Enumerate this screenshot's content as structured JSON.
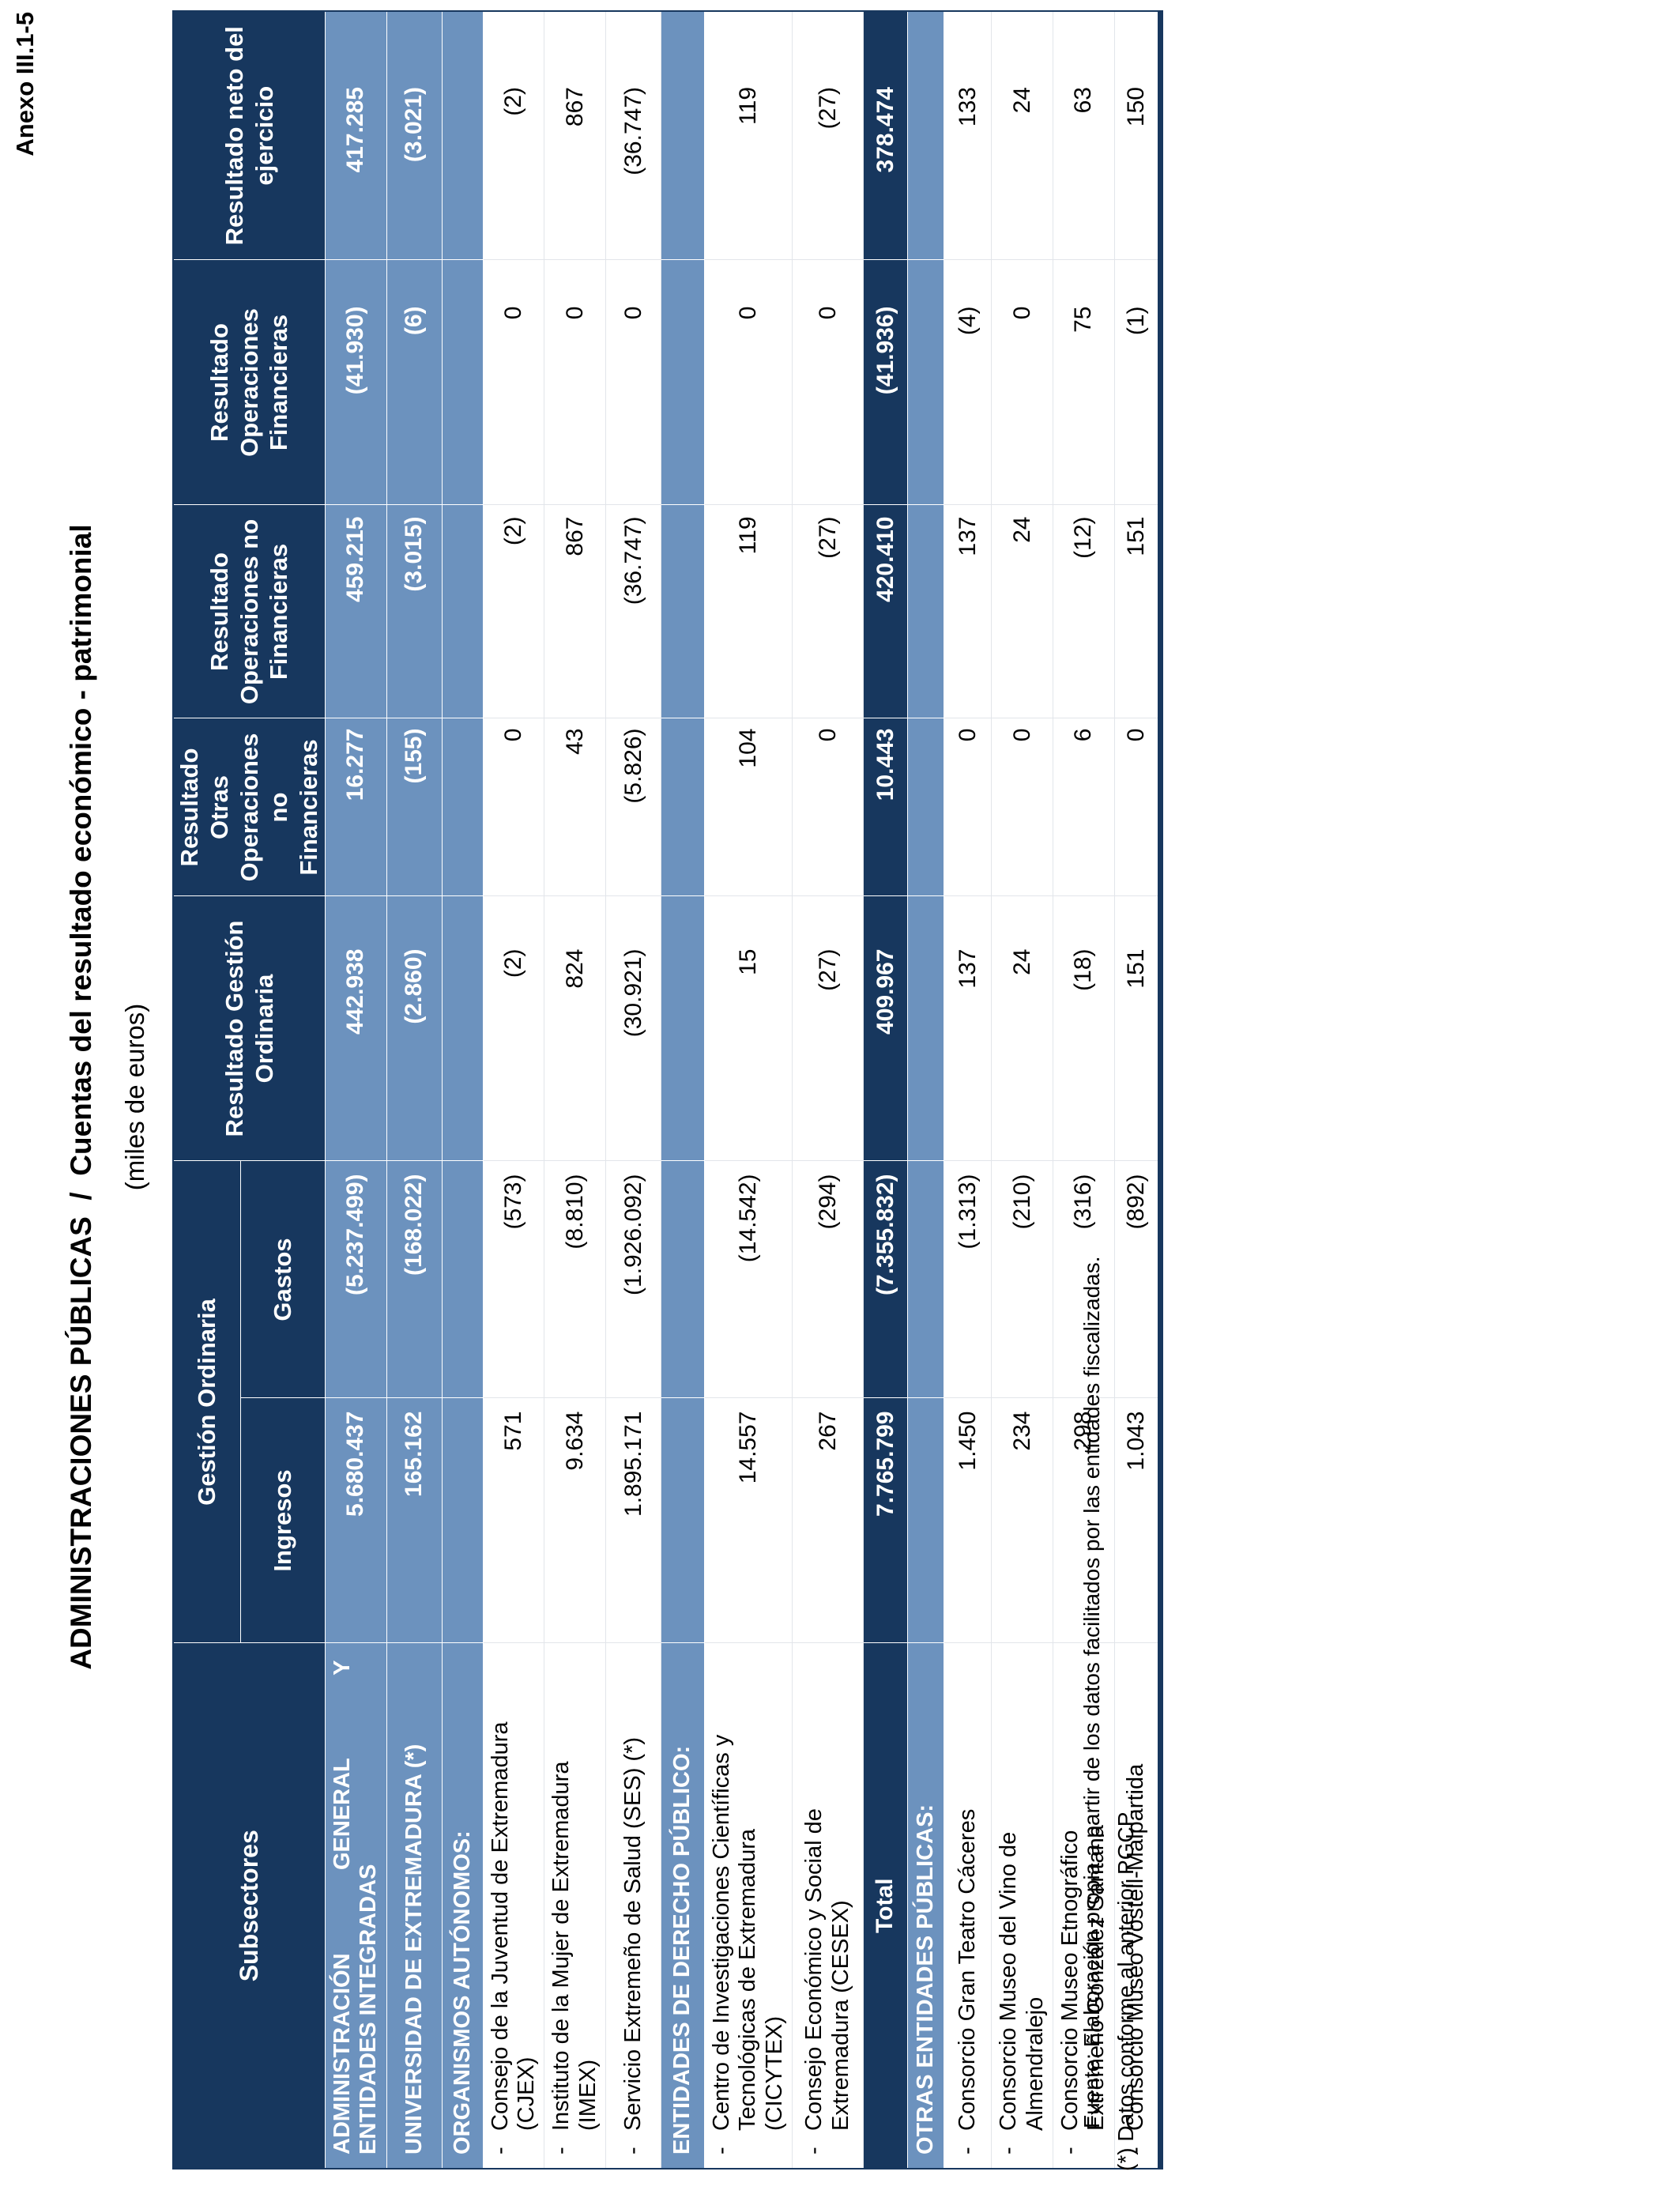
{
  "page": {
    "annex_label": "Anexo III.1-5",
    "title": "ADMINISTRACIONES PÚBLICAS  /  Cuentas del resultado económico - patrimonial",
    "subtitle": "(miles de euros)",
    "footnote_source": "Fuente: Elaboración propia a partir de los datos facilitados por las entidades fiscalizadas.",
    "footnote_note": "(*) Datos conforme al anterior PGCP."
  },
  "colors": {
    "header_navy": "#17375E",
    "section_blue": "#6C92BE",
    "white_grid": "#E2E5EA",
    "text_light": "#FFFFFF",
    "text_dark": "#000000"
  },
  "table": {
    "columns": [
      {
        "key": "label",
        "header_lines": [
          "Subsectores"
        ]
      },
      {
        "key": "ingresos",
        "group": "Gestión Ordinaria",
        "header_lines": [
          "Ingresos"
        ]
      },
      {
        "key": "gastos",
        "group": "Gestión Ordinaria",
        "header_lines": [
          "Gastos"
        ]
      },
      {
        "key": "res_gestion",
        "header_lines": [
          "Resultado Gestión",
          "Ordinaria"
        ]
      },
      {
        "key": "res_otras",
        "header_lines": [
          "Resultado Otras",
          "Operaciones no",
          "Financieras"
        ]
      },
      {
        "key": "res_op_no_fin",
        "header_lines": [
          "Resultado",
          "Operaciones no",
          "Financieras"
        ]
      },
      {
        "key": "res_op_fin",
        "header_lines": [
          "Resultado",
          "Operaciones",
          "Financieras"
        ]
      },
      {
        "key": "res_neto",
        "header_lines": [
          "Resultado neto del",
          "ejercicio"
        ]
      }
    ],
    "rows": [
      {
        "id": "admin-general",
        "type": "section",
        "justify_first": true,
        "label_lines": [
          "ADMINISTRACIÓN GENERAL Y",
          "ENTIDADES INTEGRADAS"
        ],
        "values": [
          "5.680.437",
          "(5.237.499)",
          "442.938",
          "16.277",
          "459.215",
          "(41.930)",
          "417.285"
        ]
      },
      {
        "id": "universidad",
        "type": "section",
        "label_lines": [
          "UNIVERSIDAD DE EXTREMADURA (*)"
        ],
        "values": [
          "165.162",
          "(168.022)",
          "(2.860)",
          "(155)",
          "(3.015)",
          "(6)",
          "(3.021)"
        ]
      },
      {
        "id": "organismos-autonomos",
        "type": "section",
        "label_lines": [
          "ORGANISMOS AUTÓNOMOS:"
        ],
        "values": [
          "",
          "",
          "",
          "",
          "",
          "",
          ""
        ]
      },
      {
        "id": "cjex",
        "type": "entity",
        "dash": true,
        "label_lines": [
          "Consejo de la Juventud de Extremadura",
          "(CJEX)"
        ],
        "values": [
          "571",
          "(573)",
          "(2)",
          "0",
          "(2)",
          "0",
          "(2)"
        ]
      },
      {
        "id": "imex",
        "type": "entity",
        "dash": true,
        "label_lines": [
          "Instituto de la Mujer de Extremadura",
          "(IMEX)"
        ],
        "values": [
          "9.634",
          "(8.810)",
          "824",
          "43",
          "867",
          "0",
          "867"
        ]
      },
      {
        "id": "ses",
        "type": "entity",
        "dash": true,
        "label_lines": [
          "Servicio Extremeño de Salud (SES) (*)"
        ],
        "values": [
          "1.895.171",
          "(1.926.092)",
          "(30.921)",
          "(5.826)",
          "(36.747)",
          "0",
          "(36.747)"
        ]
      },
      {
        "id": "entidades-derecho-publico",
        "type": "section",
        "label_lines": [
          "ENTIDADES DE DERECHO PÚBLICO:"
        ],
        "values": [
          "",
          "",
          "",
          "",
          "",
          "",
          ""
        ]
      },
      {
        "id": "cicytex",
        "type": "entity",
        "dash": true,
        "label_lines": [
          "Centro de Investigaciones Científicas y",
          "Tecnológicas de Extremadura",
          "(CICYTEX)"
        ],
        "values": [
          "14.557",
          "(14.542)",
          "15",
          "104",
          "119",
          "0",
          "119"
        ]
      },
      {
        "id": "cesex",
        "type": "entity",
        "dash": true,
        "label_lines": [
          "Consejo Económico y Social de",
          "Extremadura (CESEX)"
        ],
        "values": [
          "267",
          "(294)",
          "(27)",
          "0",
          "(27)",
          "0",
          "(27)"
        ]
      },
      {
        "id": "total",
        "type": "total",
        "label_lines": [
          "Total"
        ],
        "values": [
          "7.765.799",
          "(7.355.832)",
          "409.967",
          "10.443",
          "420.410",
          "(41.936)",
          "378.474"
        ]
      },
      {
        "id": "otras-entidades",
        "type": "otras",
        "label_lines": [
          "OTRAS ENTIDADES PÚBLICAS:"
        ],
        "values": [
          "",
          "",
          "",
          "",
          "",
          "",
          ""
        ]
      },
      {
        "id": "consorcio-gran-teatro",
        "type": "entity",
        "dash": true,
        "label_lines": [
          "Consorcio Gran Teatro Cáceres"
        ],
        "values": [
          "1.450",
          "(1.313)",
          "137",
          "0",
          "137",
          "(4)",
          "133"
        ]
      },
      {
        "id": "consorcio-museo-vino",
        "type": "entity",
        "dash": true,
        "label_lines": [
          "Consorcio Museo del Vino de",
          "Almendralejo"
        ],
        "values": [
          "234",
          "(210)",
          "24",
          "0",
          "24",
          "0",
          "24"
        ]
      },
      {
        "id": "consorcio-museo-etnografico",
        "type": "entity",
        "dash": true,
        "label_lines": [
          "Consorcio Museo Etnográfico",
          "Extremeño González Santana"
        ],
        "values": [
          "298",
          "(316)",
          "(18)",
          "6",
          "(12)",
          "75",
          "63"
        ]
      },
      {
        "id": "consorcio-museo-vostell",
        "type": "entity",
        "dash": true,
        "label_lines": [
          "Consorcio Museo Vostell-Malpartida"
        ],
        "values": [
          "1.043",
          "(892)",
          "151",
          "0",
          "151",
          "(1)",
          "150"
        ]
      }
    ]
  }
}
